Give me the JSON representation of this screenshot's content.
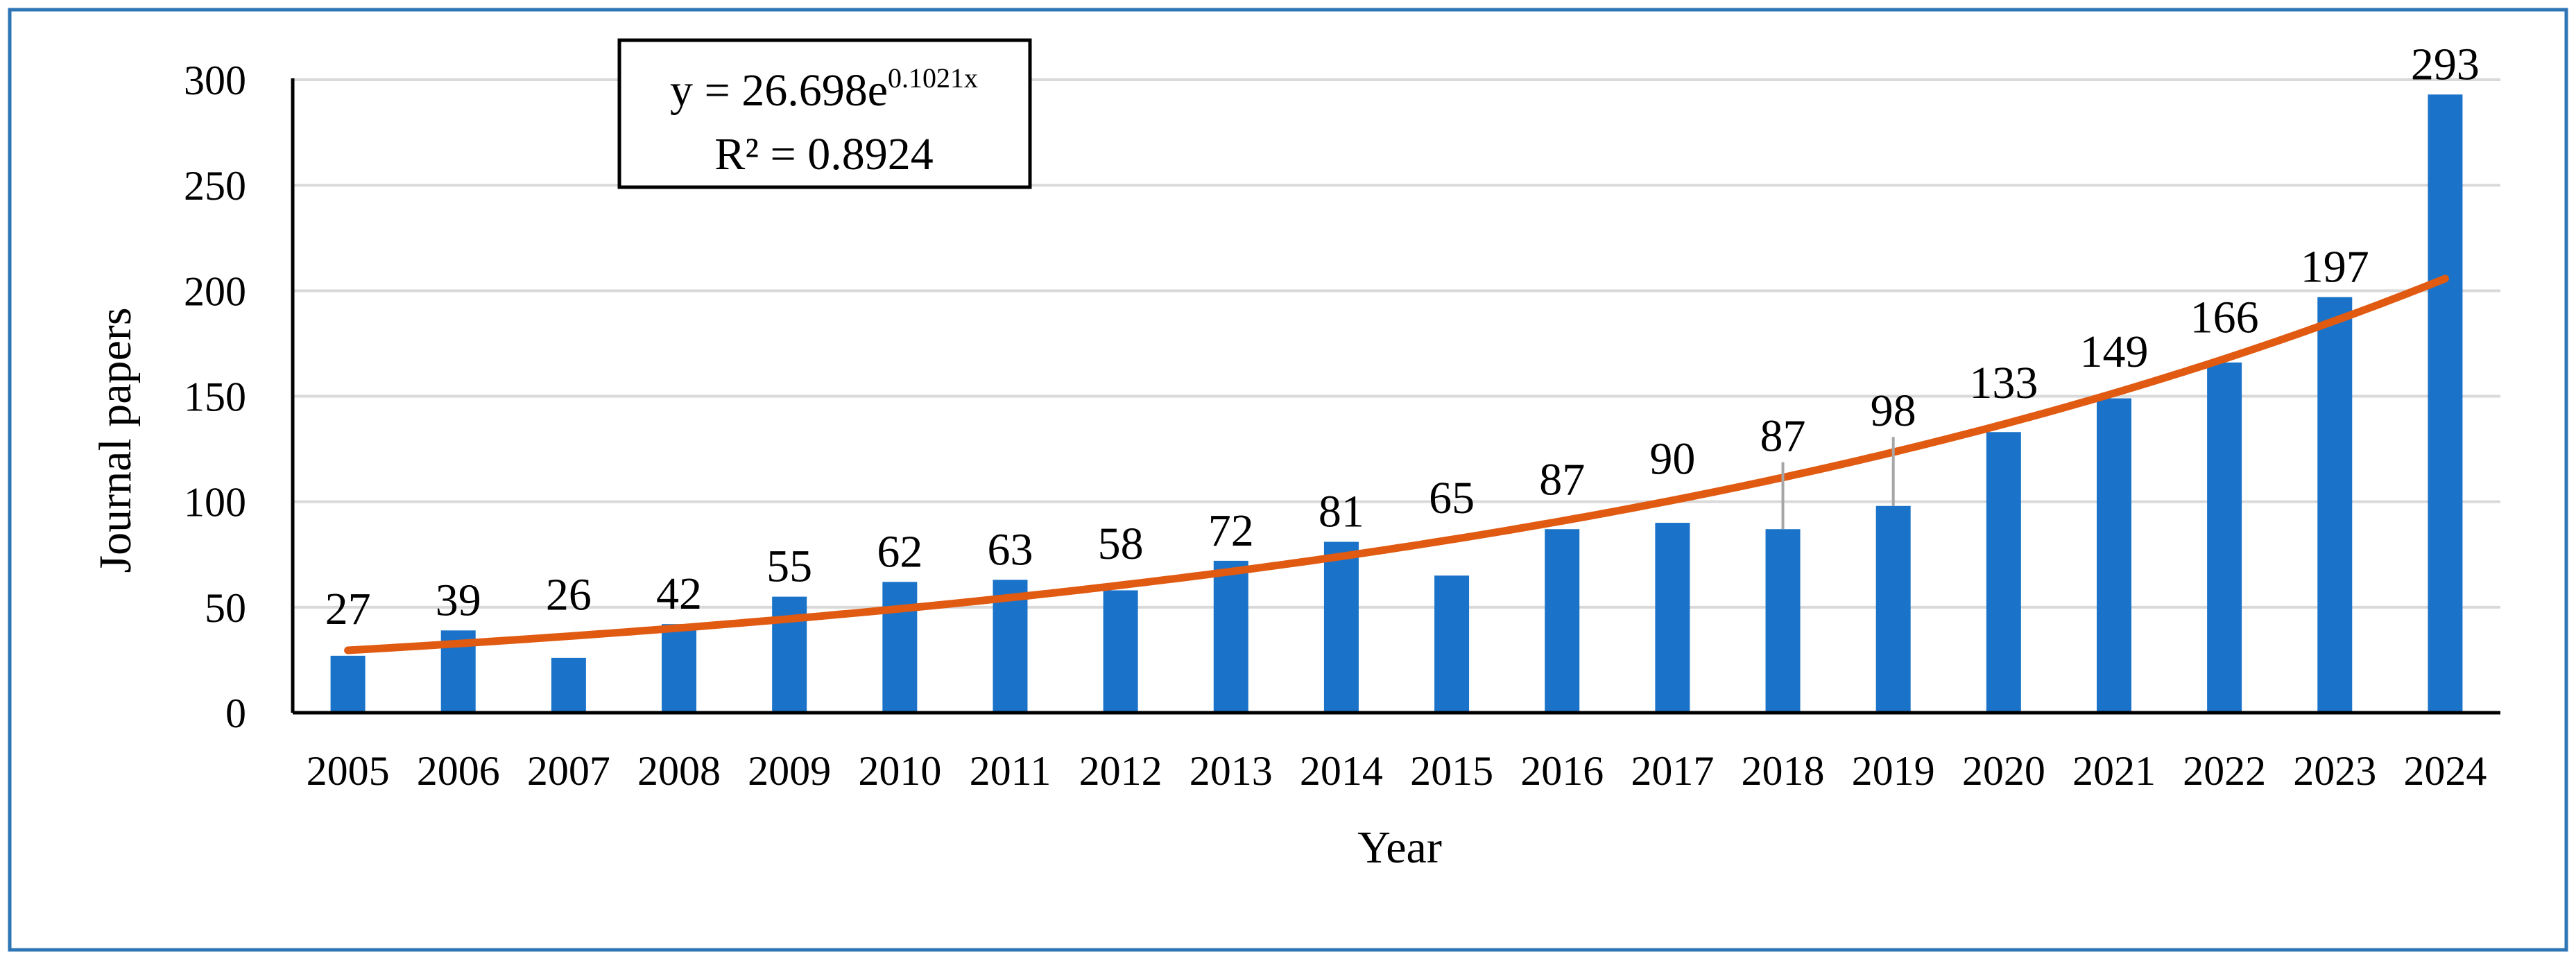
{
  "chart_data": {
    "type": "bar",
    "xlabel": "Year",
    "ylabel": "Journal papers",
    "ylim": [
      0,
      300
    ],
    "yticks": [
      0,
      50,
      100,
      150,
      200,
      250,
      300
    ],
    "grid": true,
    "categories": [
      "2005",
      "2006",
      "2007",
      "2008",
      "2009",
      "2010",
      "2011",
      "2012",
      "2013",
      "2014",
      "2015",
      "2016",
      "2017",
      "2018",
      "2019",
      "2020",
      "2021",
      "2022",
      "2023",
      "2024"
    ],
    "values": [
      27,
      39,
      26,
      42,
      55,
      62,
      63,
      58,
      72,
      81,
      65,
      87,
      90,
      87,
      98,
      133,
      149,
      166,
      197,
      293
    ],
    "trendline": {
      "type": "exponential",
      "a": 26.698,
      "b": 0.1021,
      "equation_prefix": "y = 26.698e",
      "equation_exponent": "0.1021x",
      "r_squared_label": "R² = 0.8924"
    },
    "colors": {
      "bars": "#1a73c9",
      "trendline": "#e05a12",
      "frame": "#2e75b6",
      "grid": "#d9d9d9",
      "axis": "#000000"
    }
  }
}
